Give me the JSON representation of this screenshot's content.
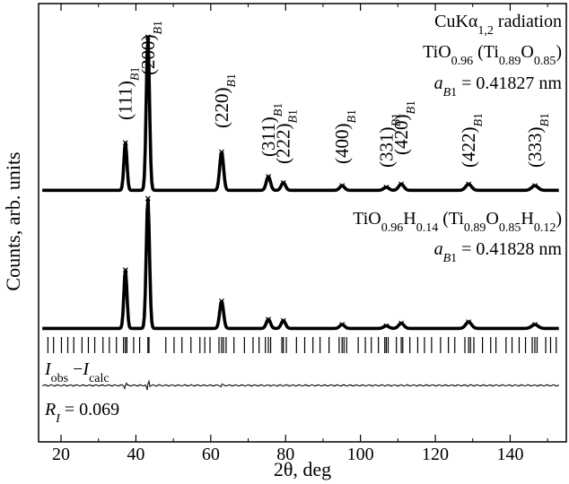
{
  "chart_data": {
    "type": "line",
    "xlabel": "2θ, deg",
    "ylabel": "Counts, arb. units",
    "xlim": [
      14,
      155
    ],
    "xticks": [
      20,
      40,
      60,
      80,
      100,
      120,
      140
    ],
    "legend": "none",
    "grid": false,
    "annotations": {
      "radiation": "CuKα1,2 radiation",
      "sample1": {
        "formula": "TiO0.96 (Ti0.89O0.85)",
        "lattice": "aB1 = 0.41827 nm"
      },
      "sample2": {
        "formula": "TiO0.96H0.14 (Ti0.89O0.85H0.12)",
        "lattice": "aB1 = 0.41828 nm"
      },
      "difference_label": "Iobs−Icalc",
      "r_factor": "RI = 0.069"
    },
    "peak_labels": [
      {
        "hkl": "(111)B1",
        "two_theta": 37.2
      },
      {
        "hkl": "(200)B1",
        "two_theta": 43.2
      },
      {
        "hkl": "(220)B1",
        "two_theta": 62.9
      },
      {
        "hkl": "(311)B1",
        "two_theta": 75.4
      },
      {
        "hkl": "(222)B1",
        "two_theta": 79.4
      },
      {
        "hkl": "(400)B1",
        "two_theta": 95.1
      },
      {
        "hkl": "(331)B1",
        "two_theta": 106.9
      },
      {
        "hkl": "(420)B1",
        "two_theta": 110.9
      },
      {
        "hkl": "(422)B1",
        "two_theta": 128.9
      },
      {
        "hkl": "(333)B1",
        "two_theta": 146.6
      }
    ],
    "series": [
      {
        "peaks": [
          {
            "two_theta": 37.2,
            "intensity": 0.31
          },
          {
            "two_theta": 43.2,
            "intensity": 1.0
          },
          {
            "two_theta": 62.9,
            "intensity": 0.25
          },
          {
            "two_theta": 75.4,
            "intensity": 0.09
          },
          {
            "two_theta": 79.4,
            "intensity": 0.05
          },
          {
            "two_theta": 95.1,
            "intensity": 0.03
          },
          {
            "two_theta": 106.9,
            "intensity": 0.02
          },
          {
            "two_theta": 110.9,
            "intensity": 0.04
          },
          {
            "two_theta": 128.9,
            "intensity": 0.04
          },
          {
            "two_theta": 146.6,
            "intensity": 0.03
          }
        ]
      },
      {
        "peaks": [
          {
            "two_theta": 37.2,
            "intensity": 0.45
          },
          {
            "two_theta": 43.2,
            "intensity": 1.0
          },
          {
            "two_theta": 62.9,
            "intensity": 0.21
          },
          {
            "two_theta": 75.4,
            "intensity": 0.07
          },
          {
            "two_theta": 79.4,
            "intensity": 0.06
          },
          {
            "two_theta": 95.1,
            "intensity": 0.03
          },
          {
            "two_theta": 106.9,
            "intensity": 0.02
          },
          {
            "two_theta": 110.9,
            "intensity": 0.04
          },
          {
            "two_theta": 128.9,
            "intensity": 0.05
          },
          {
            "two_theta": 146.6,
            "intensity": 0.03
          }
        ]
      }
    ],
    "bragg_reflections": [
      16.5,
      18.0,
      20.1,
      21.8,
      23.4,
      25.6,
      27.3,
      29.0,
      31.2,
      32.9,
      34.8,
      36.7,
      37.2,
      37.6,
      39.4,
      41.0,
      43.2,
      43.5,
      48.0,
      50.2,
      52.3,
      54.7,
      57.1,
      58.4,
      59.8,
      62.2,
      62.9,
      63.4,
      64.1,
      66.2,
      69.0,
      71.3,
      72.9,
      74.6,
      75.4,
      76.0,
      79.0,
      79.4,
      80.2,
      82.9,
      85.1,
      87.3,
      89.2,
      91.6,
      94.3,
      95.1,
      95.6,
      96.3,
      99.4,
      101.3,
      102.9,
      104.8,
      106.5,
      106.9,
      107.4,
      109.6,
      110.9,
      111.3,
      113.2,
      115.3,
      117.1,
      119.0,
      121.4,
      123.5,
      125.2,
      127.9,
      128.9,
      129.4,
      130.3,
      132.6,
      134.8,
      136.2,
      138.9,
      140.5,
      142.4,
      144.1,
      145.9,
      146.6,
      147.2,
      149.5,
      150.8,
      152.3
    ]
  }
}
